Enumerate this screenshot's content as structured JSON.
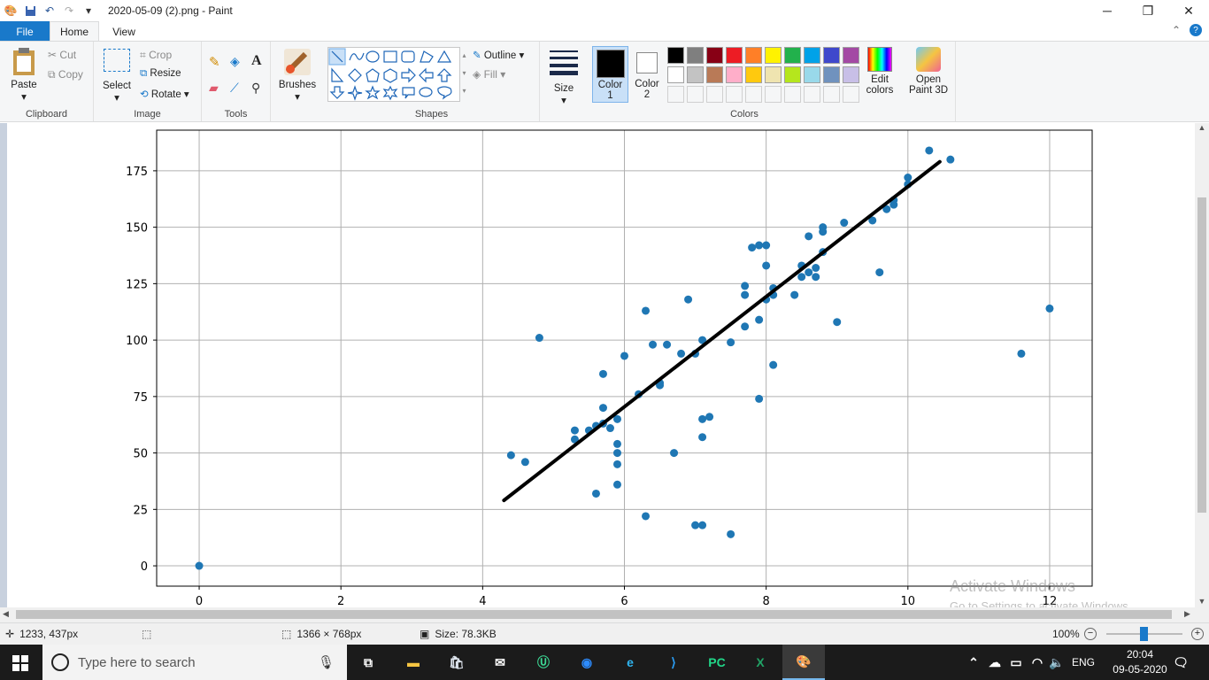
{
  "window": {
    "title": "2020-05-09 (2).png - Paint"
  },
  "tabs": {
    "file": "File",
    "home": "Home",
    "view": "View"
  },
  "ribbon": {
    "clipboard": {
      "label": "Clipboard",
      "paste": "Paste",
      "cut": "Cut",
      "copy": "Copy"
    },
    "image": {
      "label": "Image",
      "select": "Select",
      "crop": "Crop",
      "resize": "Resize",
      "rotate": "Rotate"
    },
    "tools": {
      "label": "Tools"
    },
    "brushes": {
      "label": "Brushes"
    },
    "shapes": {
      "label": "Shapes",
      "outline": "Outline",
      "fill": "Fill"
    },
    "size": {
      "label": "Size"
    },
    "color1": {
      "line1": "Color",
      "line2": "1"
    },
    "color2": {
      "line1": "Color",
      "line2": "2"
    },
    "colors": {
      "label": "Colors",
      "row1": [
        "#000000",
        "#7f7f7f",
        "#880015",
        "#ed1c24",
        "#ff7f27",
        "#fff200",
        "#22b14c",
        "#00a2e8",
        "#3f48cc",
        "#a349a4"
      ],
      "row2": [
        "#ffffff",
        "#c3c3c3",
        "#b97a57",
        "#ffaec9",
        "#ffc90e",
        "#efe4b0",
        "#b5e61d",
        "#99d9ea",
        "#7092be",
        "#c8bfe7"
      ]
    },
    "edit_colors": {
      "line1": "Edit",
      "line2": "colors"
    },
    "paint3d": {
      "line1": "Open",
      "line2": "Paint 3D"
    }
  },
  "chart_data": {
    "type": "scatter",
    "title": "",
    "xlabel": "",
    "ylabel": "",
    "xlim": [
      -0.6,
      12.6
    ],
    "ylim": [
      -9,
      193
    ],
    "xticks": [
      0,
      2,
      4,
      6,
      8,
      10,
      12
    ],
    "yticks": [
      0,
      25,
      50,
      75,
      100,
      125,
      150,
      175
    ],
    "grid": true,
    "points": [
      [
        0,
        0
      ],
      [
        4.4,
        49
      ],
      [
        4.6,
        46
      ],
      [
        4.8,
        101
      ],
      [
        5.3,
        60
      ],
      [
        5.3,
        56
      ],
      [
        5.5,
        60
      ],
      [
        5.6,
        62
      ],
      [
        5.6,
        32
      ],
      [
        5.7,
        85
      ],
      [
        5.7,
        70
      ],
      [
        5.7,
        63
      ],
      [
        5.8,
        61
      ],
      [
        5.9,
        65
      ],
      [
        5.9,
        54
      ],
      [
        5.9,
        50
      ],
      [
        5.9,
        45
      ],
      [
        5.9,
        36
      ],
      [
        6.0,
        93
      ],
      [
        6.2,
        76
      ],
      [
        6.3,
        113
      ],
      [
        6.3,
        22
      ],
      [
        6.4,
        98
      ],
      [
        6.5,
        80
      ],
      [
        6.5,
        81
      ],
      [
        6.6,
        98
      ],
      [
        6.7,
        50
      ],
      [
        6.8,
        94
      ],
      [
        6.9,
        118
      ],
      [
        7.0,
        94
      ],
      [
        7.0,
        18
      ],
      [
        7.1,
        100
      ],
      [
        7.1,
        65
      ],
      [
        7.1,
        57
      ],
      [
        7.1,
        18
      ],
      [
        7.2,
        66
      ],
      [
        7.5,
        99
      ],
      [
        7.5,
        14
      ],
      [
        7.7,
        124
      ],
      [
        7.7,
        120
      ],
      [
        7.7,
        106
      ],
      [
        7.8,
        141
      ],
      [
        7.9,
        142
      ],
      [
        7.9,
        109
      ],
      [
        7.9,
        74
      ],
      [
        8.0,
        142
      ],
      [
        8.0,
        133
      ],
      [
        8.0,
        118
      ],
      [
        8.1,
        123
      ],
      [
        8.1,
        120
      ],
      [
        8.1,
        89
      ],
      [
        8.4,
        120
      ],
      [
        8.5,
        133
      ],
      [
        8.5,
        128
      ],
      [
        8.6,
        146
      ],
      [
        8.6,
        130
      ],
      [
        8.7,
        132
      ],
      [
        8.7,
        128
      ],
      [
        8.8,
        150
      ],
      [
        8.8,
        148
      ],
      [
        8.8,
        139
      ],
      [
        9.0,
        108
      ],
      [
        9.1,
        152
      ],
      [
        9.5,
        153
      ],
      [
        9.6,
        130
      ],
      [
        9.7,
        158
      ],
      [
        9.8,
        162
      ],
      [
        9.8,
        160
      ],
      [
        10.0,
        172
      ],
      [
        10.0,
        169
      ],
      [
        10.3,
        184
      ],
      [
        10.6,
        180
      ],
      [
        11.6,
        94
      ],
      [
        12.0,
        114
      ]
    ],
    "point_color": "#1f77b4",
    "fit_line": {
      "x": [
        4.3,
        10.45
      ],
      "y": [
        29,
        179
      ],
      "color": "#000000"
    }
  },
  "status": {
    "cursor": "1233, 437px",
    "dimensions": "1366 × 768px",
    "size": "Size: 78.3KB",
    "zoom": "100%"
  },
  "watermark": {
    "line1": "Activate Windows",
    "line2": "Go to Settings to activate Windows."
  },
  "taskbar": {
    "search_placeholder": "Type here to search",
    "lang": "ENG",
    "time": "20:04",
    "date": "09-05-2020"
  }
}
